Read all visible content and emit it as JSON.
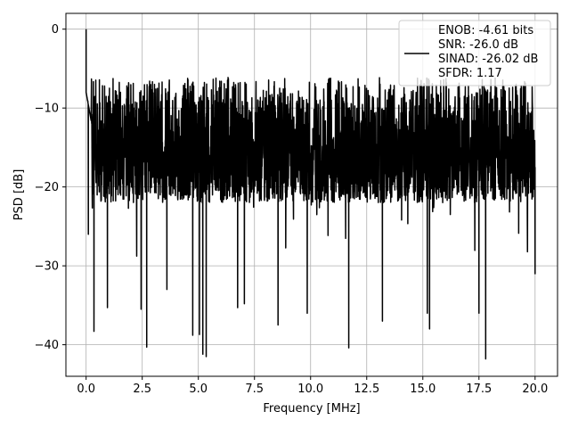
{
  "chart_data": {
    "type": "line",
    "title": "",
    "xlabel": "Frequency [MHz]",
    "ylabel": "PSD [dB]",
    "xlim": [
      -0.9,
      21.0
    ],
    "ylim": [
      -44.0,
      2.0
    ],
    "xticks": [
      0.0,
      2.5,
      5.0,
      7.5,
      10.0,
      12.5,
      15.0,
      17.5,
      20.0
    ],
    "xtick_labels": [
      "0.0",
      "2.5",
      "5.0",
      "7.5",
      "10.0",
      "12.5",
      "15.0",
      "17.5",
      "20.0"
    ],
    "yticks": [
      0,
      -10,
      -20,
      -30,
      -40
    ],
    "ytick_labels": [
      "0",
      "−10",
      "−20",
      "−30",
      "−40"
    ],
    "grid": true,
    "legend_position": "top-right",
    "legend": [
      "ENOB: -4.61 bits",
      "SNR: -26.0 dB",
      "SINAD: -26.02 dB",
      "SFDR: 1.17"
    ],
    "series": [
      {
        "name": "ENOB: -4.61 bits",
        "color": "#000000",
        "x_range": [
          0.0,
          20.0
        ],
        "noise_band_db": [
          -22.0,
          -6.0
        ],
        "peak_db": 0.0,
        "points": [
          {
            "x": 0.0,
            "y": 0.0
          },
          {
            "x": 0.1,
            "y": -26.0
          },
          {
            "x": 0.35,
            "y": -38.3
          },
          {
            "x": 0.95,
            "y": -35.3
          },
          {
            "x": 2.45,
            "y": -35.5
          },
          {
            "x": 2.7,
            "y": -40.3
          },
          {
            "x": 3.6,
            "y": -33.0
          },
          {
            "x": 4.75,
            "y": -38.8
          },
          {
            "x": 5.05,
            "y": -38.7
          },
          {
            "x": 5.2,
            "y": -41.2
          },
          {
            "x": 5.35,
            "y": -41.5
          },
          {
            "x": 6.75,
            "y": -35.3
          },
          {
            "x": 7.05,
            "y": -34.8
          },
          {
            "x": 8.55,
            "y": -37.5
          },
          {
            "x": 9.85,
            "y": -36.0
          },
          {
            "x": 11.7,
            "y": -40.4
          },
          {
            "x": 13.2,
            "y": -37.0
          },
          {
            "x": 15.2,
            "y": -36.0
          },
          {
            "x": 15.3,
            "y": -38.0
          },
          {
            "x": 17.5,
            "y": -36.0
          },
          {
            "x": 17.8,
            "y": -41.8
          },
          {
            "x": 20.0,
            "y": -31.0
          }
        ]
      }
    ]
  }
}
